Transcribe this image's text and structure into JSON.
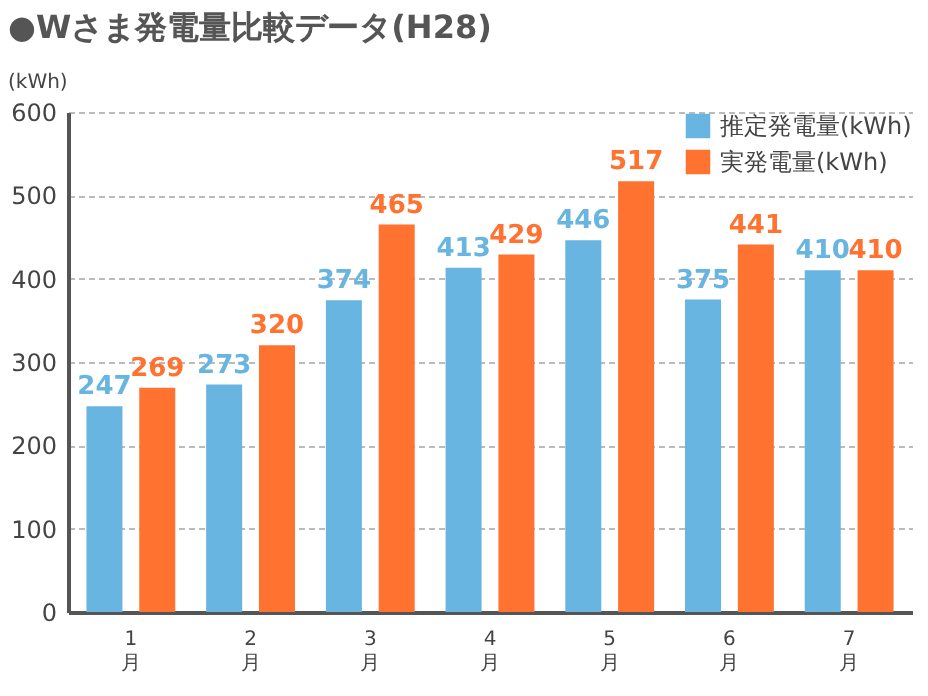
{
  "chart_data": {
    "type": "bar",
    "title": "●Wさま発電量比較データ(H28)",
    "ylabel": "(kWh)",
    "categories": [
      "1\n月",
      "2\n月",
      "3\n月",
      "4\n月",
      "5\n月",
      "6\n月",
      "7\n月"
    ],
    "series": [
      {
        "name": "推定発電量(kWh)",
        "color": "#67b5e0",
        "values": [
          247,
          273,
          374,
          413,
          446,
          375,
          410
        ]
      },
      {
        "name": "実発電量(kWh)",
        "color": "#ff7230",
        "values": [
          269,
          320,
          465,
          429,
          517,
          441,
          410
        ]
      }
    ],
    "ylim": [
      0,
      600
    ],
    "yticks": [
      0,
      100,
      200,
      300,
      400,
      500,
      600
    ],
    "grid": "y",
    "legend": "top right",
    "data_labels": true
  }
}
